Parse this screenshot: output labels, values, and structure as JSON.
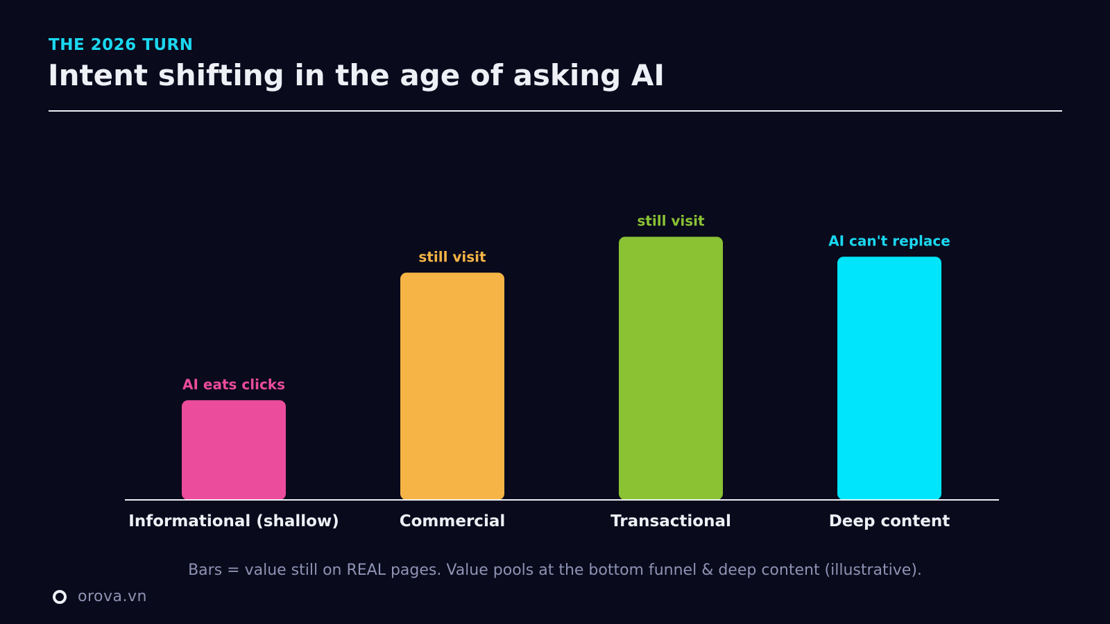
{
  "header": {
    "kicker": "THE 2026 TURN",
    "title": "Intent shifting in the age of asking AI"
  },
  "chart_data": {
    "type": "bar",
    "categories": [
      "Informational (shallow)",
      "Commercial",
      "Transactional",
      "Deep content"
    ],
    "values": [
      25,
      57,
      66,
      61
    ],
    "annotations": [
      "AI eats clicks",
      "still visit",
      "still visit",
      "AI can't replace"
    ],
    "colors": [
      "#ec4c9c",
      "#f5b445",
      "#8ac234",
      "#00e5fb"
    ],
    "label_colors": [
      "#ec4c9c",
      "#f5b445",
      "#8ac234",
      "#1ad8f0"
    ],
    "ylim": [
      0,
      100
    ],
    "grid": false,
    "legend": "none",
    "title": "Intent shifting in the age of asking AI",
    "xlabel": "",
    "ylabel": ""
  },
  "footer": {
    "caption": "Bars = value still on REAL pages. Value pools at the bottom funnel & deep content (illustrative).",
    "brand": "orova.vn",
    "brand_icon": "ring-logo-icon"
  }
}
